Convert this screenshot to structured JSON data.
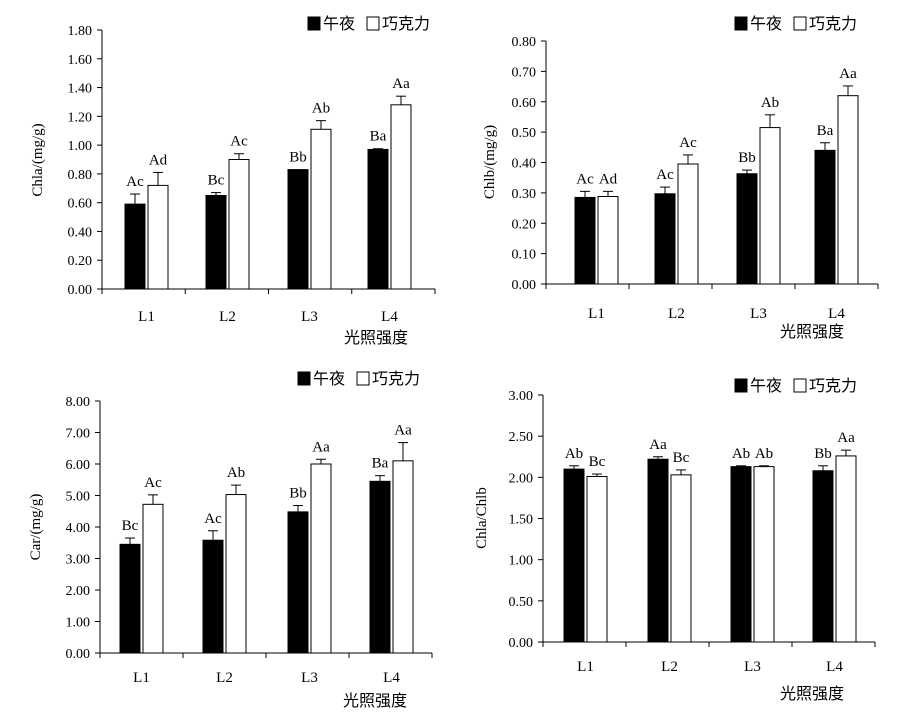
{
  "colors": {
    "series_1": "#000000",
    "series_2": "#ffffff",
    "stroke": "#000000"
  },
  "chart_data": [
    {
      "type": "bar",
      "xlabel": "",
      "ylabel": "Chla/(mg/g)",
      "ylim": [
        0,
        1.8
      ],
      "yticks": [
        "0.00",
        "0.20",
        "0.40",
        "0.60",
        "0.80",
        "1.00",
        "1.20",
        "1.40",
        "1.60",
        "1.80"
      ],
      "categories": [
        "L1",
        "L2",
        "L3",
        "L4"
      ],
      "legend": "top-right",
      "series": [
        {
          "name": "午夜",
          "values": [
            0.59,
            0.65,
            0.83,
            0.97
          ],
          "errors": [
            0.07,
            0.02,
            0.0,
            0.005
          ],
          "labels": [
            "Ac",
            "Bc",
            "Bb",
            "Ba"
          ]
        },
        {
          "name": "巧克力",
          "values": [
            0.72,
            0.9,
            1.11,
            1.28
          ],
          "errors": [
            0.09,
            0.04,
            0.06,
            0.06
          ],
          "labels": [
            "Ad",
            "Ac",
            "Ab",
            "Aa"
          ]
        }
      ]
    },
    {
      "type": "bar",
      "xlabel": "光照强度",
      "ylabel": "Chlb/(mg/g)",
      "ylim": [
        0,
        0.8
      ],
      "yticks": [
        "0.00",
        "0.10",
        "0.20",
        "0.30",
        "0.40",
        "0.50",
        "0.60",
        "0.70",
        "0.80"
      ],
      "categories": [
        "L1",
        "L2",
        "L3",
        "L4"
      ],
      "legend": "top-right",
      "series": [
        {
          "name": "午夜",
          "values": [
            0.285,
            0.297,
            0.363,
            0.44
          ],
          "errors": [
            0.02,
            0.022,
            0.012,
            0.025
          ],
          "labels": [
            "Ac",
            "Ac",
            "Bb",
            "Ba"
          ]
        },
        {
          "name": "巧克力",
          "values": [
            0.288,
            0.395,
            0.515,
            0.62
          ],
          "errors": [
            0.017,
            0.03,
            0.042,
            0.032
          ],
          "labels": [
            "Ad",
            "Ac",
            "Ab",
            "Aa"
          ]
        }
      ]
    },
    {
      "type": "bar",
      "xlabel": "",
      "ylabel": "Car/(mg/g)",
      "ylim": [
        0,
        8
      ],
      "yticks": [
        "0.00",
        "1.00",
        "2.00",
        "3.00",
        "4.00",
        "5.00",
        "6.00",
        "7.00",
        "8.00"
      ],
      "categories": [
        "L1",
        "L2",
        "L3",
        "L4"
      ],
      "legend": "top-right",
      "series": [
        {
          "name": "午夜",
          "values": [
            3.45,
            3.58,
            4.48,
            5.45
          ],
          "errors": [
            0.2,
            0.3,
            0.2,
            0.18
          ],
          "labels": [
            "Bc",
            "Ac",
            "Bb",
            "Ba"
          ]
        },
        {
          "name": "巧克力",
          "values": [
            4.72,
            5.03,
            6.0,
            6.1
          ],
          "errors": [
            0.3,
            0.3,
            0.15,
            0.58
          ],
          "labels": [
            "Ac",
            "Ab",
            "Aa",
            "Aa"
          ]
        }
      ]
    },
    {
      "type": "bar",
      "xlabel": "光照强度",
      "ylabel": "Chla/Chlb",
      "ylim": [
        0,
        3
      ],
      "yticks": [
        "0.00",
        "0.50",
        "1.00",
        "1.50",
        "2.00",
        "2.50",
        "3.00"
      ],
      "categories": [
        "L1",
        "L2",
        "L3",
        "L4"
      ],
      "legend": "top-right",
      "series": [
        {
          "name": "午夜",
          "values": [
            2.1,
            2.22,
            2.13,
            2.08
          ],
          "errors": [
            0.04,
            0.03,
            0.01,
            0.06
          ],
          "labels": [
            "Ab",
            "Aa",
            "Ab",
            "Bb"
          ]
        },
        {
          "name": "巧克力",
          "values": [
            2.01,
            2.03,
            2.13,
            2.26
          ],
          "errors": [
            0.03,
            0.06,
            0.01,
            0.07
          ],
          "labels": [
            "Bc",
            "Bc",
            "Ab",
            "Aa"
          ]
        }
      ]
    }
  ],
  "footer": {
    "x_title": "光照强度"
  }
}
